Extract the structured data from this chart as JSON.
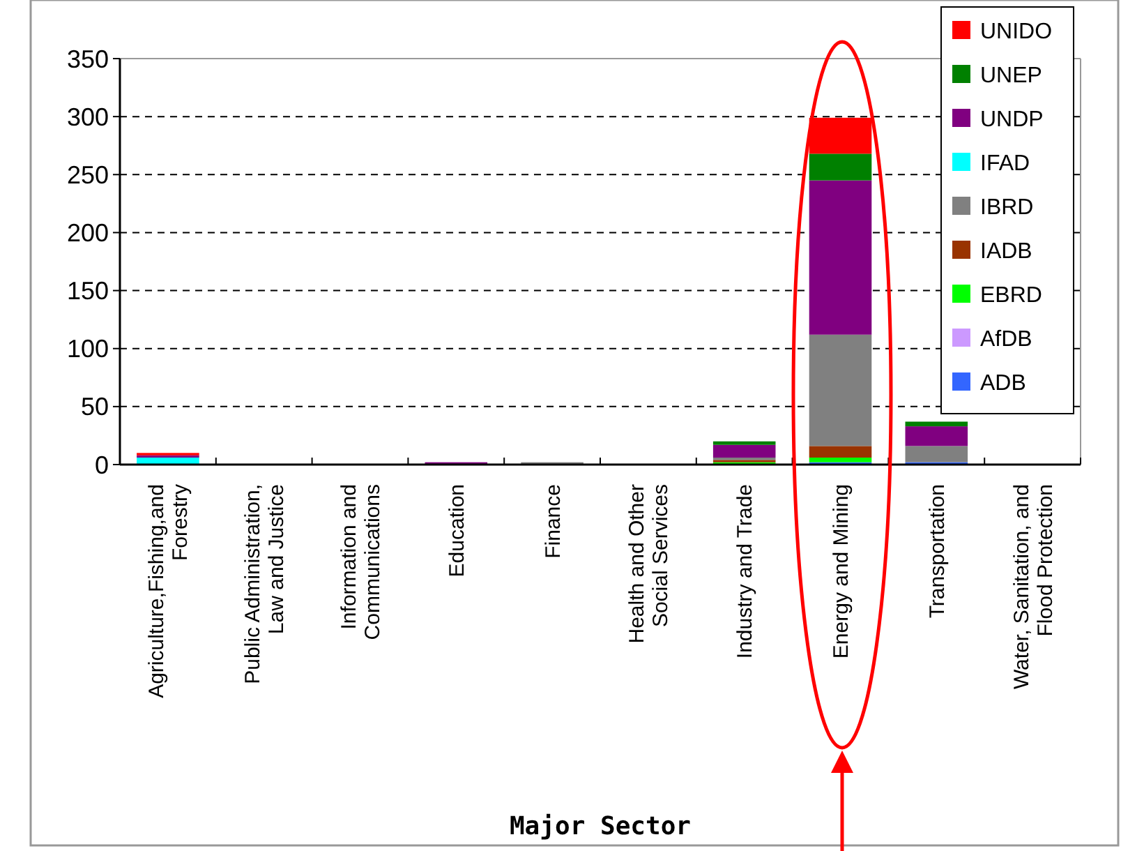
{
  "chart_data": {
    "type": "bar",
    "stacked": true,
    "xlabel": "Major Sector",
    "categories": [
      "Agriculture,Fishing,and Forestry",
      "Public Administration, Law and Justice",
      "Information and Communications",
      "Education",
      "Finance",
      "Health and Other Social Services",
      "Industry and Trade",
      "Energy and Mining",
      "Transportation",
      "Water, Sanitation, and Flood Protection"
    ],
    "series": [
      {
        "name": "ADB",
        "color": "#3366ff",
        "values": [
          0,
          0,
          0,
          0,
          0,
          0,
          0,
          2,
          2,
          0
        ]
      },
      {
        "name": "AfDB",
        "color": "#cc99ff",
        "values": [
          0,
          0,
          0,
          0,
          0,
          0,
          0,
          0,
          0,
          0
        ]
      },
      {
        "name": "EBRD",
        "color": "#00ff00",
        "values": [
          0,
          0,
          0,
          0,
          0,
          0,
          2,
          4,
          0,
          0
        ]
      },
      {
        "name": "IADB",
        "color": "#993300",
        "values": [
          0,
          0,
          0,
          0,
          0,
          0,
          2,
          10,
          0,
          0
        ]
      },
      {
        "name": "IBRD",
        "color": "#808080",
        "values": [
          0,
          0,
          0,
          0,
          2,
          0,
          2,
          96,
          14,
          0
        ]
      },
      {
        "name": "IFAD",
        "color": "#00ffff",
        "values": [
          6,
          0,
          0,
          0,
          0,
          0,
          0,
          0,
          0,
          0
        ]
      },
      {
        "name": "UNDP",
        "color": "#800080",
        "values": [
          2,
          0,
          0,
          2,
          0,
          0,
          11,
          133,
          17,
          0
        ]
      },
      {
        "name": "UNEP",
        "color": "#008000",
        "values": [
          0,
          0,
          0,
          0,
          0,
          0,
          3,
          23,
          4,
          0
        ]
      },
      {
        "name": "UNIDO",
        "color": "#ff0000",
        "values": [
          2,
          0,
          0,
          0,
          0,
          0,
          0,
          31,
          0,
          0
        ]
      }
    ],
    "ylim": [
      0,
      350
    ],
    "yticks": [
      0,
      50,
      100,
      150,
      200,
      250,
      300,
      350
    ],
    "grid": "y",
    "legend": "top right"
  }
}
